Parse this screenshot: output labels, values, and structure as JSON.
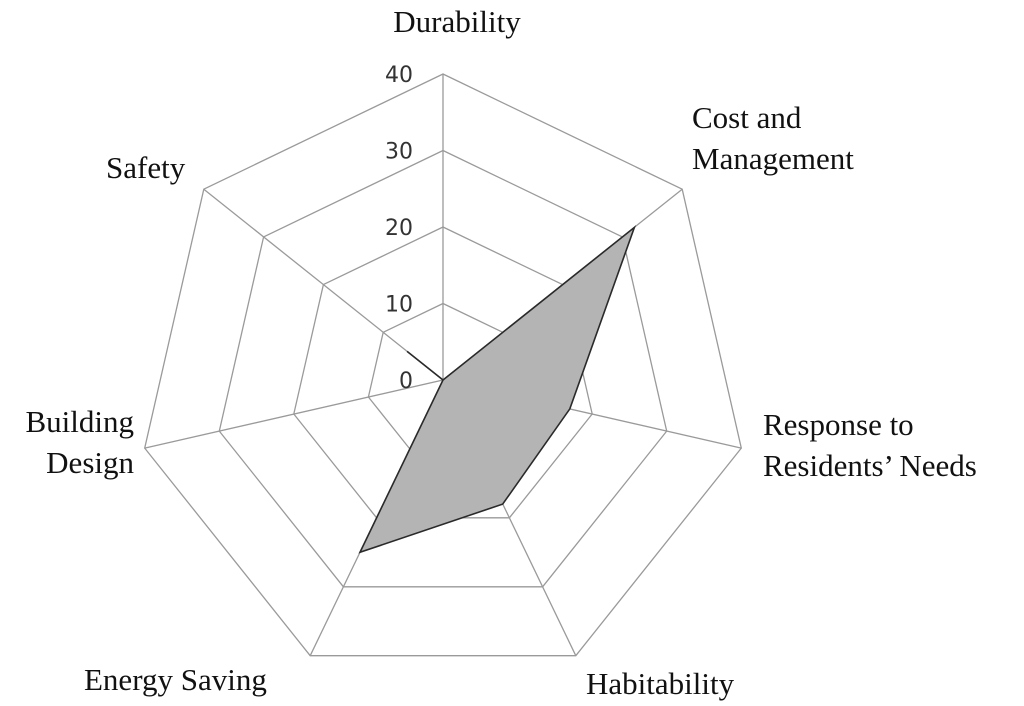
{
  "chart_data": {
    "type": "radar",
    "title": "",
    "axes": [
      [
        "Durability"
      ],
      [
        "Cost and",
        "Management"
      ],
      [
        "Response to",
        "Residents’ Needs"
      ],
      [
        "Habitability"
      ],
      [
        "Energy Saving"
      ],
      [
        "Building",
        "Design"
      ],
      [
        "Safety"
      ]
    ],
    "r_range": [
      0,
      40
    ],
    "r_ticks": [
      0,
      10,
      20,
      30,
      40
    ],
    "grid": true,
    "legend": "none",
    "series": [
      {
        "values": [
          0,
          32,
          17,
          18,
          25,
          0,
          6
        ],
        "fill_color": "#b4b4b4",
        "line_color": "#2a2a2a"
      }
    ]
  }
}
